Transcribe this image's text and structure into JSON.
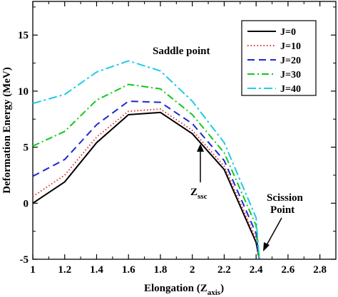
{
  "chart_data": {
    "type": "line",
    "xlabel": "Elongation (Z",
    "xlabel_sub": "axis",
    "xlabel_close": ")",
    "ylabel": "Deformation Energy (MeV)",
    "xlim": [
      1,
      2.9
    ],
    "ylim": [
      -5,
      18
    ],
    "xticks": [
      1,
      1.2,
      1.4,
      1.6,
      1.8,
      2,
      2.2,
      2.4,
      2.6,
      2.8
    ],
    "xtick_labels": [
      "1",
      "1.2",
      "1.4",
      "1.6",
      "1.8",
      "2",
      "2.2",
      "2.4",
      "2.6",
      "2.8"
    ],
    "yticks": [
      -5,
      0,
      5,
      10,
      15
    ],
    "ytick_labels": [
      "-5",
      "0",
      "5",
      "10",
      "15"
    ],
    "grid": false,
    "legend_position": "top-right",
    "x": [
      1.0,
      1.2,
      1.4,
      1.6,
      1.8,
      2.0,
      2.2,
      2.4,
      2.42
    ],
    "series": [
      {
        "name": "J=0",
        "color": "#000000",
        "dash": "solid",
        "values": [
          0.0,
          1.9,
          5.4,
          7.9,
          8.1,
          6.2,
          3.0,
          -3.5,
          -5.0
        ]
      },
      {
        "name": "J=10",
        "color": "#e0302a",
        "dash": "dotted",
        "values": [
          0.6,
          2.5,
          5.9,
          8.2,
          8.4,
          6.5,
          3.3,
          -3.2,
          -5.0
        ]
      },
      {
        "name": "J=20",
        "color": "#1c28d0",
        "dash": "dashed",
        "values": [
          2.4,
          3.9,
          7.0,
          9.1,
          9.0,
          7.1,
          3.8,
          -2.7,
          -5.0
        ]
      },
      {
        "name": "J=30",
        "color": "#12c81a",
        "dash": "dashdot",
        "values": [
          5.1,
          6.4,
          9.2,
          10.6,
          10.2,
          7.9,
          4.5,
          -2.0,
          -5.0
        ]
      },
      {
        "name": "J=40",
        "color": "#1ecbe6",
        "dash": "dashdash",
        "values": [
          8.9,
          9.7,
          11.7,
          12.7,
          11.8,
          9.1,
          5.4,
          -1.3,
          -5.0
        ]
      }
    ],
    "annotations": {
      "saddle": "Saddle point",
      "zssc_main": "Z",
      "zssc_sub": "ssc",
      "scission_line1": "Scission",
      "scission_line2": "Point"
    }
  }
}
